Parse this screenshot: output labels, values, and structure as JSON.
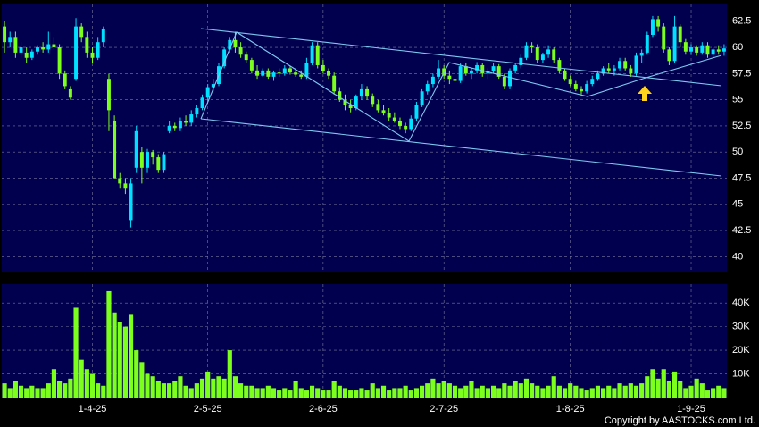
{
  "chart_data": [
    {
      "type": "candlestick",
      "up_color": "#00e0ff",
      "down_color": "#7dff1e",
      "ylim": [
        38.5,
        64.1
      ],
      "yticks": [
        40,
        42.5,
        45,
        47.5,
        50,
        52.5,
        55,
        57.5,
        60,
        62.5
      ],
      "grid": true,
      "ohlc": [
        [
          62,
          62.5,
          59.5,
          60.5
        ],
        [
          60.5,
          61.5,
          60,
          61
        ],
        [
          61,
          61.5,
          59,
          59.5
        ],
        [
          59.5,
          60.5,
          59,
          60
        ],
        [
          59.5,
          60,
          58.5,
          59
        ],
        [
          59,
          59.8,
          58.8,
          59.6
        ],
        [
          59.6,
          60.2,
          59.3,
          60
        ],
        [
          60,
          60.5,
          59.5,
          59.8
        ],
        [
          59.8,
          61.5,
          59.5,
          60.3
        ],
        [
          60.3,
          61,
          59.8,
          60
        ],
        [
          60,
          60.3,
          57,
          57.5
        ],
        [
          57.5,
          57.8,
          56,
          56.3
        ],
        [
          56,
          56.3,
          55,
          55.2
        ],
        [
          57,
          62.8,
          56.8,
          62
        ],
        [
          62,
          62.3,
          60.5,
          61
        ],
        [
          61,
          61.5,
          59,
          59.5
        ],
        [
          59.5,
          60,
          58.5,
          59
        ],
        [
          59,
          61,
          58.8,
          60.5
        ],
        [
          60.5,
          62,
          60,
          61.8
        ],
        [
          57,
          57.5,
          52,
          54
        ],
        [
          53,
          53.5,
          47.5,
          47.5
        ],
        [
          47.5,
          48,
          46.5,
          47
        ],
        [
          47,
          47.5,
          46,
          46.5
        ],
        [
          43.5,
          47.5,
          42.8,
          47
        ],
        [
          48.5,
          52.5,
          48,
          52
        ],
        [
          50,
          50.5,
          47,
          48.5
        ],
        [
          48.5,
          50.3,
          48,
          50
        ],
        [
          50,
          50.2,
          48.8,
          49.5
        ],
        [
          49.5,
          49.8,
          48,
          48.3
        ],
        [
          48.3,
          50,
          48,
          49.8
        ],
        [
          52,
          53,
          51.8,
          52.5
        ],
        [
          52.5,
          52.8,
          52,
          52.3
        ],
        [
          52.3,
          53.3,
          52,
          53
        ],
        [
          53,
          53.5,
          52.5,
          52.8
        ],
        [
          52.8,
          54,
          52.5,
          53.6
        ],
        [
          53.6,
          54.5,
          53.3,
          54.2
        ],
        [
          54.2,
          55.5,
          54,
          55.2
        ],
        [
          55.2,
          56.5,
          54.8,
          56.2
        ],
        [
          56.2,
          57,
          55.8,
          56.5
        ],
        [
          56.5,
          58.5,
          56.3,
          58.2
        ],
        [
          58.2,
          60,
          58,
          59.8
        ],
        [
          59.8,
          61,
          59.5,
          60.7
        ],
        [
          60.7,
          61.5,
          59.5,
          60
        ],
        [
          60,
          60.5,
          59,
          59.3
        ],
        [
          59.3,
          59.6,
          58.5,
          58.8
        ],
        [
          58.8,
          59,
          57.5,
          57.8
        ],
        [
          57.8,
          58.3,
          57,
          57.3
        ],
        [
          57.3,
          58,
          57.2,
          57.8
        ],
        [
          57.8,
          58,
          57,
          57.2
        ],
        [
          57.2,
          57.8,
          56.8,
          57.6
        ],
        [
          57.6,
          58,
          57.2,
          57.5
        ],
        [
          57.5,
          58.3,
          57.3,
          58
        ],
        [
          58,
          58.2,
          57.4,
          57.6
        ],
        [
          57.6,
          58,
          57.2,
          57.4
        ],
        [
          57.4,
          57.8,
          57,
          57.2
        ],
        [
          57.2,
          59,
          57,
          58.5
        ],
        [
          58.5,
          60.5,
          58.3,
          60.2
        ],
        [
          60.2,
          60.5,
          58,
          58.3
        ],
        [
          58.3,
          58.8,
          57.5,
          57.7
        ],
        [
          57.7,
          58,
          57,
          57.3
        ],
        [
          57.3,
          57.6,
          55.5,
          55.8
        ],
        [
          55.8,
          56.2,
          54.8,
          55
        ],
        [
          55,
          55.5,
          54,
          54.5
        ],
        [
          54.5,
          55,
          53.8,
          54.2
        ],
        [
          54.2,
          55.5,
          54,
          55.3
        ],
        [
          55.3,
          56.5,
          55,
          56
        ],
        [
          56,
          56.3,
          55,
          55.3
        ],
        [
          55.3,
          55.6,
          54.3,
          54.6
        ],
        [
          54.6,
          55,
          53.8,
          54
        ],
        [
          54,
          54.5,
          53.5,
          53.7
        ],
        [
          53.7,
          54.2,
          53,
          53.3
        ],
        [
          53.3,
          53.8,
          52.8,
          53
        ],
        [
          53,
          53.3,
          52.2,
          52.5
        ],
        [
          52.5,
          52.8,
          51.8,
          52.2
        ],
        [
          52.2,
          53.5,
          52,
          53.2
        ],
        [
          53.2,
          54.8,
          53,
          54.5
        ],
        [
          54.5,
          56,
          54.3,
          55.8
        ],
        [
          55.8,
          56.8,
          55.5,
          56.5
        ],
        [
          56.5,
          57.5,
          56.2,
          57.2
        ],
        [
          57.2,
          58.8,
          57,
          58
        ],
        [
          58,
          58.3,
          57,
          57.3
        ],
        [
          57.3,
          57.8,
          56.5,
          57
        ],
        [
          57,
          57.5,
          56.3,
          56.8
        ],
        [
          56.8,
          58.5,
          56.6,
          58.2
        ],
        [
          58.2,
          58.5,
          57.3,
          57.5
        ],
        [
          57.5,
          58,
          57,
          57.8
        ],
        [
          57.8,
          58.6,
          57.5,
          58.3
        ],
        [
          58.3,
          58.5,
          57.2,
          57.5
        ],
        [
          57.5,
          58,
          57,
          57.7
        ],
        [
          57.7,
          58.5,
          57.5,
          58.2
        ],
        [
          58.2,
          58.4,
          57,
          57.2
        ],
        [
          57.2,
          57.5,
          56,
          56.3
        ],
        [
          56.3,
          58,
          56,
          57.8
        ],
        [
          57.8,
          58.5,
          57.5,
          58.3
        ],
        [
          58.3,
          59.3,
          58,
          59
        ],
        [
          59,
          60.5,
          58.8,
          60.2
        ],
        [
          60.2,
          60.5,
          59.5,
          60
        ],
        [
          60,
          60.3,
          58.5,
          58.8
        ],
        [
          58.8,
          59.5,
          58.5,
          59.3
        ],
        [
          59.3,
          60.2,
          59,
          59.8
        ],
        [
          59.8,
          60,
          58.5,
          58.8
        ],
        [
          58.8,
          59,
          57.5,
          57.8
        ],
        [
          57.8,
          58,
          56.8,
          57
        ],
        [
          57,
          57.3,
          56.3,
          56.5
        ],
        [
          56.5,
          56.8,
          55.8,
          56
        ],
        [
          56,
          56.3,
          55.5,
          55.8
        ],
        [
          55.8,
          56.8,
          55.6,
          56.5
        ],
        [
          56.5,
          57.3,
          56.3,
          57
        ],
        [
          57,
          57.8,
          56.8,
          57.5
        ],
        [
          57.5,
          58.2,
          57.3,
          58
        ],
        [
          58,
          58.5,
          57.5,
          57.8
        ],
        [
          57.8,
          58.3,
          57.3,
          58
        ],
        [
          58,
          59,
          57.8,
          58.7
        ],
        [
          58.7,
          59,
          57.8,
          58
        ],
        [
          58,
          58.3,
          57.2,
          57.5
        ],
        [
          57.5,
          59.5,
          57.3,
          59.2
        ],
        [
          59.2,
          59.8,
          58.5,
          59.5
        ],
        [
          59.5,
          61.5,
          59.3,
          61.2
        ],
        [
          61.2,
          63,
          61,
          62.7
        ],
        [
          62.7,
          63,
          61.5,
          62
        ],
        [
          62,
          62.3,
          59.5,
          59.8
        ],
        [
          59.8,
          60,
          58.3,
          58.7
        ],
        [
          58.7,
          63,
          58.5,
          62
        ],
        [
          62,
          62.2,
          60,
          60.5
        ],
        [
          60.5,
          60.8,
          59.3,
          59.6
        ],
        [
          59.6,
          60.3,
          59.3,
          60
        ],
        [
          60,
          60.2,
          59.2,
          59.5
        ],
        [
          59.5,
          60.5,
          59.3,
          60.2
        ],
        [
          60.2,
          60.5,
          59,
          59.3
        ],
        [
          59.3,
          60,
          59,
          59.8
        ],
        [
          59.8,
          60.2,
          59.3,
          59.6
        ],
        [
          59.6,
          60.3,
          59.2,
          59.9
        ]
      ]
    },
    {
      "type": "bar",
      "color": "#7dff1e",
      "ylim": [
        0,
        48000
      ],
      "yticks": [
        {
          "value": 10000,
          "label": "10K"
        },
        {
          "value": 20000,
          "label": "20K"
        },
        {
          "value": 30000,
          "label": "30K"
        },
        {
          "value": 40000,
          "label": "40K"
        }
      ],
      "grid": true,
      "categories": [
        null,
        null,
        null,
        null,
        null,
        null,
        null,
        null,
        null,
        null,
        null,
        null,
        null,
        null,
        null,
        null,
        "1-4-25",
        null,
        null,
        null,
        null,
        null,
        null,
        null,
        null,
        null,
        null,
        null,
        null,
        null,
        null,
        null,
        null,
        null,
        null,
        null,
        null,
        "2-5-25",
        null,
        null,
        null,
        null,
        null,
        null,
        null,
        null,
        null,
        null,
        null,
        null,
        null,
        null,
        null,
        null,
        null,
        null,
        null,
        null,
        "2-6-25",
        null,
        null,
        null,
        null,
        null,
        null,
        null,
        null,
        null,
        null,
        null,
        null,
        null,
        null,
        null,
        null,
        null,
        null,
        null,
        null,
        null,
        "2-7-25",
        null,
        null,
        null,
        null,
        null,
        null,
        null,
        null,
        null,
        null,
        null,
        null,
        null,
        null,
        null,
        null,
        null,
        null,
        null,
        null,
        null,
        null,
        "1-8-25",
        null,
        null,
        null,
        null,
        null,
        null,
        null,
        null,
        null,
        null,
        null,
        null,
        null,
        null,
        null,
        null,
        null,
        null,
        null,
        null,
        null,
        "1-9-25",
        null,
        null,
        null,
        null,
        null,
        null
      ],
      "values": [
        6000,
        4000,
        7000,
        5000,
        4000,
        5000,
        4000,
        4000,
        6000,
        12000,
        7000,
        6000,
        8000,
        38000,
        16000,
        12000,
        10000,
        6000,
        5000,
        45000,
        36000,
        32000,
        30000,
        35000,
        20000,
        15000,
        10000,
        9000,
        7000,
        6000,
        6000,
        7000,
        9000,
        5000,
        4000,
        6000,
        8000,
        11000,
        8000,
        9000,
        8000,
        20000,
        9000,
        6000,
        5000,
        5000,
        4000,
        4000,
        5000,
        4000,
        3000,
        4000,
        3000,
        7000,
        4000,
        3000,
        5000,
        4000,
        3000,
        3000,
        7000,
        5000,
        4000,
        3000,
        3000,
        4000,
        3000,
        6000,
        4000,
        5000,
        3000,
        4000,
        4000,
        5000,
        3000,
        4000,
        5000,
        6000,
        8000,
        6000,
        7000,
        6000,
        5000,
        4000,
        5000,
        7000,
        4000,
        5000,
        4000,
        5000,
        4000,
        6000,
        5000,
        7000,
        6000,
        8000,
        6000,
        5000,
        4000,
        5000,
        9000,
        5000,
        4000,
        6000,
        5000,
        4000,
        3000,
        4000,
        5000,
        4000,
        5000,
        4000,
        6000,
        5000,
        6000,
        5000,
        6000,
        9000,
        12000,
        8000,
        12000,
        7000,
        11000,
        7000,
        4000,
        5000,
        8000,
        6000,
        3000,
        4000,
        5000,
        4000
      ]
    },
    {
      "type": "text",
      "copyright": "Copyright by AASTOCKS.com Ltd."
    }
  ]
}
